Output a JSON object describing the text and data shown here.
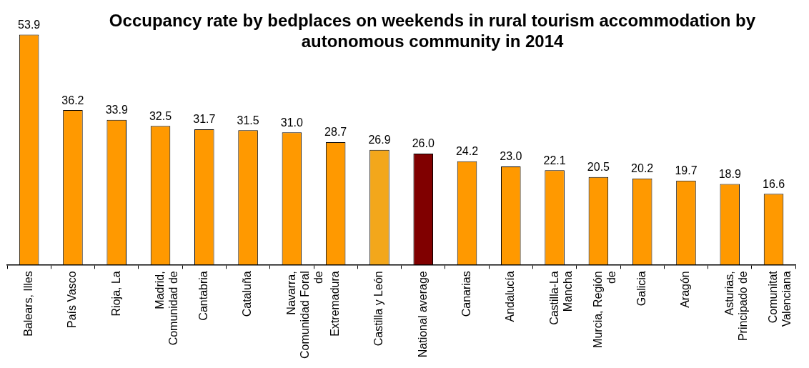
{
  "chart_data": {
    "type": "bar",
    "title": "Occupancy rate by bedplaces on weekends in rural tourism accommodation by autonomous community in 2014",
    "categories": [
      "Balears, Illes",
      "País Vasco",
      "Rioja, La",
      "Madrid, Comunidad de",
      "Cantabria",
      "Cataluña",
      "Navarra, Comunidad Foral de",
      "Extremadura",
      "Castilla y León",
      "National average",
      "Canarias",
      "Andalucía",
      "Castilla-La Mancha",
      "Murcia, Región de",
      "Galicia",
      "Aragón",
      "Asturias, Principado de",
      "Comunitat Valenciana"
    ],
    "values": [
      53.9,
      36.2,
      33.9,
      32.5,
      31.7,
      31.5,
      31.0,
      28.7,
      26.9,
      26.0,
      24.2,
      23.0,
      22.1,
      20.5,
      20.2,
      19.7,
      18.9,
      16.6
    ],
    "value_labels": [
      "53.9",
      "36.2",
      "33.9",
      "32.5",
      "31.7",
      "31.5",
      "31.0",
      "28.7",
      "26.9",
      "26.0",
      "24.2",
      "23.0",
      "22.1",
      "20.5",
      "20.2",
      "19.7",
      "18.9",
      "16.6"
    ],
    "colors": [
      "#ff9900",
      "#ff9900",
      "#ff9900",
      "#ff9900",
      "#ff9900",
      "#ff9900",
      "#ff9900",
      "#ff9900",
      "#f3a71b",
      "#800000",
      "#ff9900",
      "#ff9900",
      "#ff9900",
      "#ff9900",
      "#ff9900",
      "#ff9900",
      "#ff9900",
      "#ff9900"
    ]
  }
}
